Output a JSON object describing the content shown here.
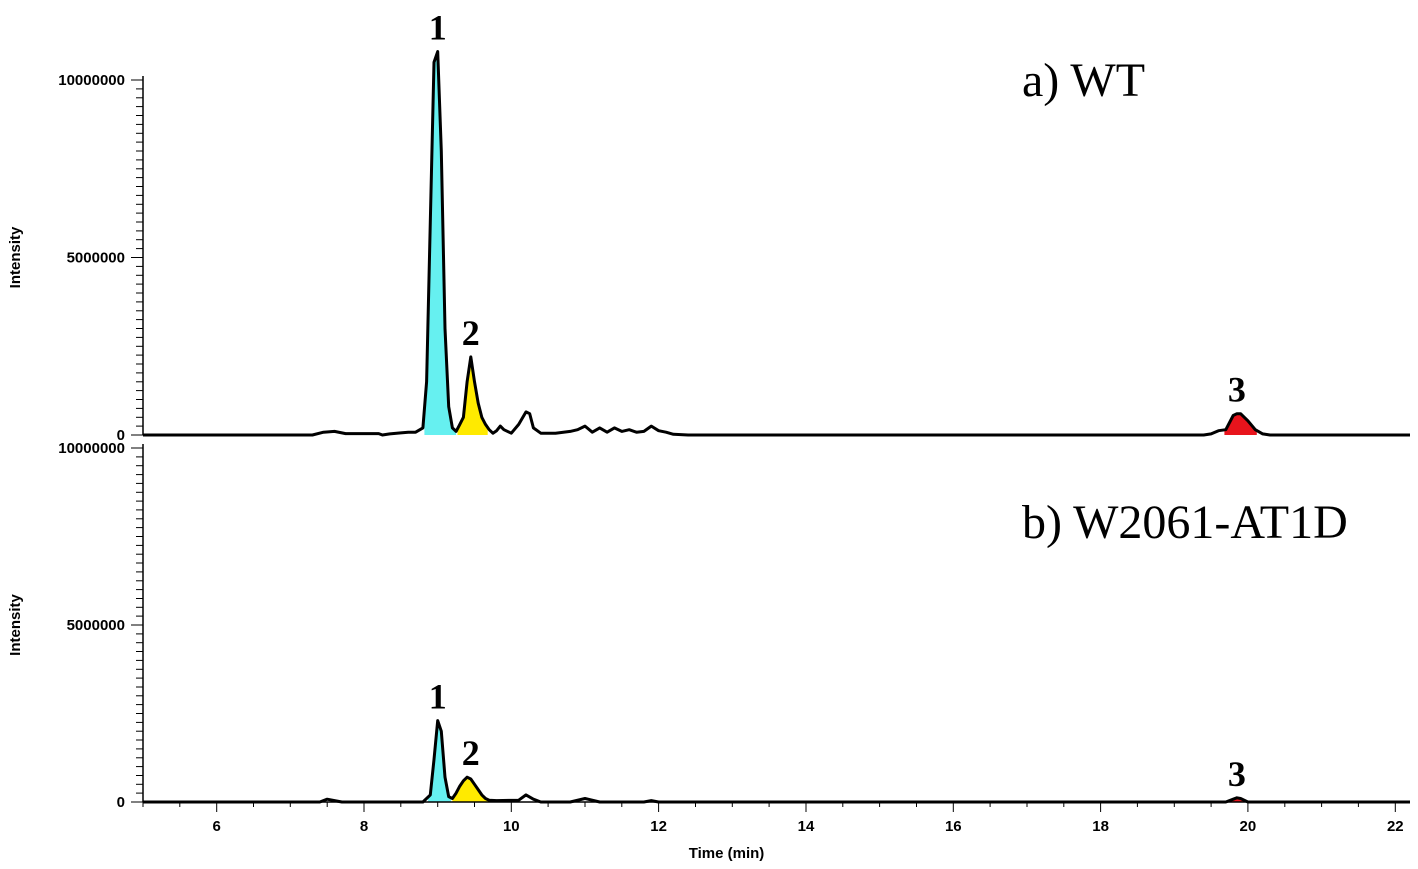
{
  "chart_data": [
    {
      "type": "line",
      "panel_label": "a)  WT",
      "ylabel": "Intensity",
      "xlabel": "",
      "xlim": [
        5,
        22.2
      ],
      "ylim": [
        0,
        10000000
      ],
      "y_ticks": [
        "0",
        "5000000",
        "10000000"
      ],
      "y_tick_values": [
        0,
        5000000,
        10000000
      ],
      "grid": false,
      "series": [
        {
          "x": [
            5.0,
            7.3,
            7.45,
            7.6,
            7.75,
            7.9,
            8.0,
            8.2,
            8.25,
            8.35,
            8.5,
            8.6,
            8.7,
            8.8,
            8.85,
            8.9,
            8.95,
            9.0,
            9.05,
            9.1,
            9.15,
            9.2,
            9.25,
            9.3,
            9.35,
            9.4,
            9.45,
            9.5,
            9.55,
            9.6,
            9.65,
            9.7,
            9.75,
            9.8,
            9.85,
            9.9,
            10.0,
            10.1,
            10.2,
            10.25,
            10.3,
            10.4,
            10.6,
            10.8,
            10.9,
            11.0,
            11.1,
            11.2,
            11.3,
            11.4,
            11.5,
            11.6,
            11.7,
            11.8,
            11.9,
            12.0,
            12.1,
            12.2,
            12.4,
            13.0,
            19.4,
            19.5,
            19.6,
            19.7,
            19.8,
            19.85,
            19.9,
            20.0,
            20.1,
            20.2,
            20.3,
            22.2
          ],
          "y": [
            0,
            0,
            80000,
            100000,
            40000,
            40000,
            40000,
            40000,
            0,
            30000,
            60000,
            80000,
            80000,
            200000,
            1500000,
            6000000,
            10500000,
            10800000,
            8000000,
            3000000,
            800000,
            200000,
            100000,
            300000,
            500000,
            1500000,
            2200000,
            1500000,
            900000,
            500000,
            300000,
            150000,
            50000,
            120000,
            250000,
            150000,
            50000,
            300000,
            650000,
            600000,
            200000,
            50000,
            50000,
            100000,
            150000,
            250000,
            80000,
            200000,
            80000,
            200000,
            100000,
            150000,
            80000,
            100000,
            250000,
            120000,
            80000,
            20000,
            0,
            0,
            0,
            30000,
            120000,
            150000,
            550000,
            600000,
            600000,
            400000,
            150000,
            30000,
            0,
            0
          ]
        }
      ],
      "peaks": [
        {
          "label": "1",
          "x": 9.0,
          "y": 10800000,
          "color": "#66f0f0",
          "range": [
            8.82,
            9.25
          ]
        },
        {
          "label": "2",
          "x": 9.45,
          "y": 2200000,
          "color": "#ffea00",
          "range": [
            9.27,
            9.68
          ]
        },
        {
          "label": "3",
          "x": 19.85,
          "y": 600000,
          "color": "#e8141c",
          "range": [
            19.68,
            20.12
          ]
        }
      ]
    },
    {
      "type": "line",
      "panel_label": "b)  W2061-AT1D",
      "ylabel": "Intensity",
      "xlabel": "Time (min)",
      "xlim": [
        5,
        22.2
      ],
      "ylim": [
        0,
        10000000
      ],
      "y_ticks": [
        "0",
        "5000000",
        "10000000"
      ],
      "y_tick_values": [
        0,
        5000000,
        10000000
      ],
      "x_ticks": [
        "6",
        "8",
        "10",
        "12",
        "14",
        "16",
        "18",
        "20",
        "22"
      ],
      "x_tick_values": [
        6,
        8,
        10,
        12,
        14,
        16,
        18,
        20,
        22
      ],
      "grid": false,
      "series": [
        {
          "x": [
            5.0,
            7.4,
            7.5,
            7.6,
            7.7,
            8.8,
            8.9,
            8.95,
            9.0,
            9.05,
            9.1,
            9.15,
            9.2,
            9.25,
            9.3,
            9.35,
            9.4,
            9.45,
            9.5,
            9.55,
            9.6,
            9.65,
            9.7,
            9.8,
            10.1,
            10.2,
            10.3,
            10.4,
            10.8,
            11.0,
            11.1,
            11.2,
            11.8,
            11.9,
            12.0,
            19.7,
            19.8,
            19.85,
            19.9,
            20.0,
            22.2
          ],
          "y": [
            0,
            0,
            80000,
            40000,
            0,
            0,
            200000,
            1200000,
            2300000,
            2000000,
            700000,
            150000,
            100000,
            250000,
            450000,
            600000,
            700000,
            650000,
            500000,
            350000,
            200000,
            100000,
            50000,
            40000,
            50000,
            200000,
            80000,
            0,
            0,
            100000,
            50000,
            0,
            0,
            40000,
            0,
            0,
            80000,
            120000,
            100000,
            0,
            0
          ]
        }
      ],
      "peaks": [
        {
          "label": "1",
          "x": 9.0,
          "y": 2300000,
          "color": "#66f0f0",
          "range": [
            8.87,
            9.18
          ]
        },
        {
          "label": "2",
          "x": 9.45,
          "y": 700000,
          "color": "#ffea00",
          "range": [
            9.2,
            9.72
          ]
        },
        {
          "label": "3",
          "x": 19.85,
          "y": 120000,
          "color": "#e8141c",
          "range": [
            19.72,
            19.98
          ]
        }
      ]
    }
  ]
}
